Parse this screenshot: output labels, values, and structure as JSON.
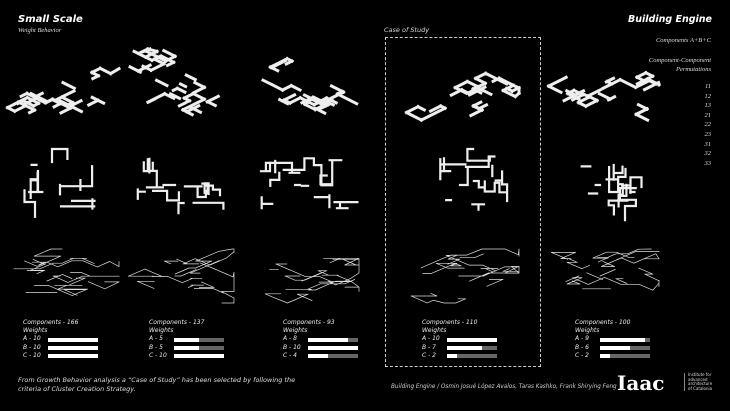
{
  "header": {
    "title": "Small Scale",
    "subtitle": "Weight Behavior",
    "case_label": "Case of Study"
  },
  "legend": {
    "title": "Building Engine",
    "components": "Components A+B+C",
    "permutations_title_1": "Component-Component",
    "permutations_title_2": "Permutations",
    "permutations": [
      "11",
      "12",
      "13",
      "21",
      "22",
      "23",
      "31",
      "32",
      "33"
    ]
  },
  "columns": [
    {
      "components": "Components - 166",
      "weights_label": "Weights",
      "weights": [
        {
          "label": "A - 10",
          "value": 10
        },
        {
          "label": "B - 10",
          "value": 10
        },
        {
          "label": "C - 10",
          "value": 10
        }
      ]
    },
    {
      "components": "Components - 137",
      "weights_label": "Weights",
      "weights": [
        {
          "label": "A - 5",
          "value": 5
        },
        {
          "label": "B - 5",
          "value": 5
        },
        {
          "label": "C - 10",
          "value": 10
        }
      ]
    },
    {
      "components": "Components - 93",
      "weights_label": "Weights",
      "weights": [
        {
          "label": "A - 8",
          "value": 8
        },
        {
          "label": "B - 10",
          "value": 10
        },
        {
          "label": "C - 4",
          "value": 4
        }
      ]
    },
    {
      "components": "Components - 110",
      "weights_label": "Weights",
      "weights": [
        {
          "label": "A - 10",
          "value": 10
        },
        {
          "label": "B - 7",
          "value": 7
        },
        {
          "label": "C - 2",
          "value": 2
        }
      ]
    },
    {
      "components": "Components - 100",
      "weights_label": "Weights",
      "weights": [
        {
          "label": "A - 9",
          "value": 9
        },
        {
          "label": "B - 6",
          "value": 6
        },
        {
          "label": "C - 2",
          "value": 2
        }
      ]
    }
  ],
  "weight_max": 10,
  "footer": {
    "note_1": "From Growth Behavior analysis a “Case of Study” has been selected by following the",
    "note_2": "criteria of Cluster Creation Strategy.",
    "credits": "Building Engine  / Osmin Josué López Avalos, Taras Kashko, Frank Shirying Feng",
    "logo": "Iaac",
    "logo_text": [
      "Institute for",
      "advanced",
      "architecture",
      "of Catalonia"
    ]
  },
  "colors": {
    "background": "#000000",
    "foreground": "#ffffff",
    "bar_track": "#666666"
  }
}
